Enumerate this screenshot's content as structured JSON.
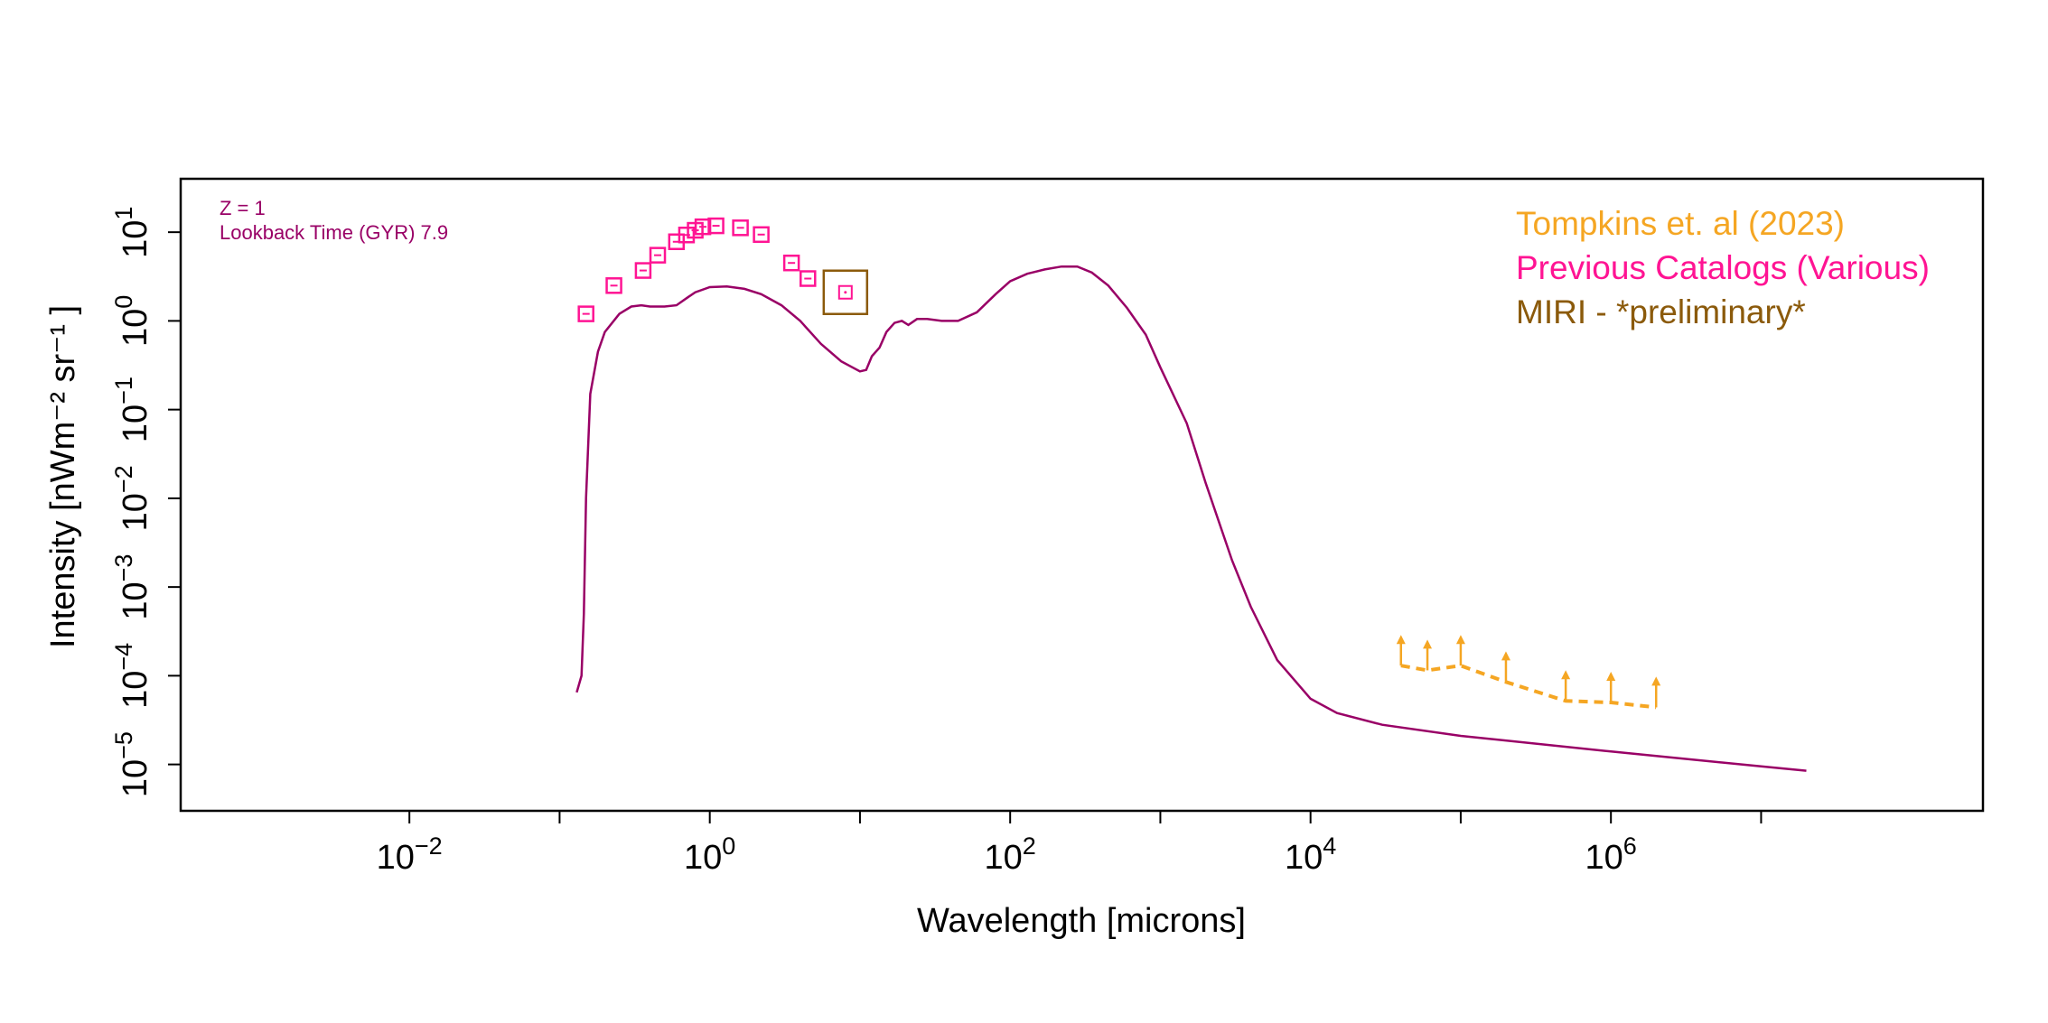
{
  "chart_data": {
    "type": "line",
    "xlabel": "Wavelength [microns]",
    "ylabel": "Intensity [nWm⁻² sr⁻¹ ]",
    "x_scale": "log10",
    "y_scale": "log10",
    "xlim": [
      0.0003,
      300000000
    ],
    "ylim": [
      3e-06,
      40
    ],
    "x_ticks": [
      0.01,
      0.1,
      1,
      10,
      100,
      1000,
      10000,
      100000,
      1000000,
      10000000
    ],
    "x_tick_labels": [
      {
        "base": "10",
        "exp": "−2",
        "value": 0.01
      },
      {
        "base": "10",
        "exp": "0",
        "value": 1
      },
      {
        "base": "10",
        "exp": "2",
        "value": 100
      },
      {
        "base": "10",
        "exp": "4",
        "value": 10000
      },
      {
        "base": "10",
        "exp": "6",
        "value": 1000000
      }
    ],
    "y_ticks": [
      1e-05,
      0.0001,
      0.001,
      0.01,
      0.1,
      1,
      10
    ],
    "y_tick_labels": [
      {
        "base": "10",
        "exp": "−5",
        "value": 1e-05
      },
      {
        "base": "10",
        "exp": "−4",
        "value": 0.0001
      },
      {
        "base": "10",
        "exp": "−3",
        "value": 0.001
      },
      {
        "base": "10",
        "exp": "−2",
        "value": 0.01
      },
      {
        "base": "10",
        "exp": "−1",
        "value": 0.1
      },
      {
        "base": "10",
        "exp": "0",
        "value": 1
      },
      {
        "base": "10",
        "exp": "1",
        "value": 10
      }
    ],
    "annotations": [
      "Z = 1",
      "Lookback Time (GYR) 7.9"
    ],
    "legend": {
      "position": "top-right",
      "entries": [
        {
          "label": "Tompkins et. al (2023)",
          "color": "#f5a623"
        },
        {
          "label": "Previous Catalogs (Various)",
          "color": "#ff1493"
        },
        {
          "label": "MIRI - *preliminary*",
          "color": "#8b5a0b"
        }
      ]
    },
    "grid": false,
    "series": [
      {
        "kind": "model-line",
        "color": "#990066",
        "points": [
          [
            0.13,
            6.5e-05
          ],
          [
            0.14,
            0.0001
          ],
          [
            0.145,
            0.0005
          ],
          [
            0.15,
            0.01
          ],
          [
            0.16,
            0.15
          ],
          [
            0.18,
            0.45
          ],
          [
            0.2,
            0.75
          ],
          [
            0.25,
            1.2
          ],
          [
            0.3,
            1.45
          ],
          [
            0.35,
            1.5
          ],
          [
            0.4,
            1.45
          ],
          [
            0.5,
            1.45
          ],
          [
            0.6,
            1.5
          ],
          [
            0.7,
            1.8
          ],
          [
            0.8,
            2.1
          ],
          [
            1.0,
            2.4
          ],
          [
            1.3,
            2.45
          ],
          [
            1.7,
            2.3
          ],
          [
            2.2,
            2.0
          ],
          [
            3.0,
            1.5
          ],
          [
            4.0,
            1.0
          ],
          [
            5.5,
            0.55
          ],
          [
            7.5,
            0.35
          ],
          [
            10,
            0.27
          ],
          [
            11,
            0.28
          ],
          [
            12,
            0.4
          ],
          [
            13.5,
            0.5
          ],
          [
            15,
            0.75
          ],
          [
            17,
            0.95
          ],
          [
            19,
            1.0
          ],
          [
            21,
            0.9
          ],
          [
            24,
            1.05
          ],
          [
            28,
            1.05
          ],
          [
            35,
            1.0
          ],
          [
            45,
            1.0
          ],
          [
            60,
            1.25
          ],
          [
            80,
            2.0
          ],
          [
            100,
            2.8
          ],
          [
            130,
            3.4
          ],
          [
            170,
            3.8
          ],
          [
            220,
            4.1
          ],
          [
            280,
            4.1
          ],
          [
            350,
            3.5
          ],
          [
            450,
            2.5
          ],
          [
            600,
            1.4
          ],
          [
            800,
            0.7
          ],
          [
            1000,
            0.3
          ],
          [
            1500,
            0.07
          ],
          [
            2000,
            0.015
          ],
          [
            3000,
            0.002
          ],
          [
            4000,
            0.0006
          ],
          [
            6000,
            0.00015
          ],
          [
            10000,
            5.5e-05
          ],
          [
            15000,
            3.8e-05
          ],
          [
            30000,
            2.8e-05
          ],
          [
            100000,
            2.1e-05
          ],
          [
            1000000,
            1.4e-05
          ],
          [
            10000000,
            9.5e-06
          ],
          [
            20000000,
            8.5e-06
          ]
        ]
      },
      {
        "kind": "previous-catalogs",
        "color": "#ff1493",
        "points": [
          [
            0.15,
            1.2
          ],
          [
            0.23,
            2.5
          ],
          [
            0.36,
            3.7
          ],
          [
            0.45,
            5.5
          ],
          [
            0.6,
            7.8
          ],
          [
            0.7,
            9.3
          ],
          [
            0.8,
            10.5
          ],
          [
            0.9,
            11.5
          ],
          [
            1.1,
            11.8
          ],
          [
            1.6,
            11.2
          ],
          [
            2.2,
            9.4
          ],
          [
            3.5,
            4.5
          ],
          [
            4.5,
            3.0
          ]
        ]
      },
      {
        "kind": "miri-preliminary",
        "color": "#8b5a0b",
        "points": [
          [
            8.0,
            2.1
          ]
        ]
      },
      {
        "kind": "tompkins-2023-lower-limits",
        "color": "#f5a623",
        "points": [
          [
            40000,
            0.00013
          ],
          [
            60000,
            0.000115
          ],
          [
            100000,
            0.00013
          ],
          [
            200000,
            8.5e-05
          ],
          [
            500000,
            5.2e-05
          ],
          [
            1000000,
            5e-05
          ],
          [
            2000000,
            4.4e-05
          ]
        ]
      }
    ]
  }
}
